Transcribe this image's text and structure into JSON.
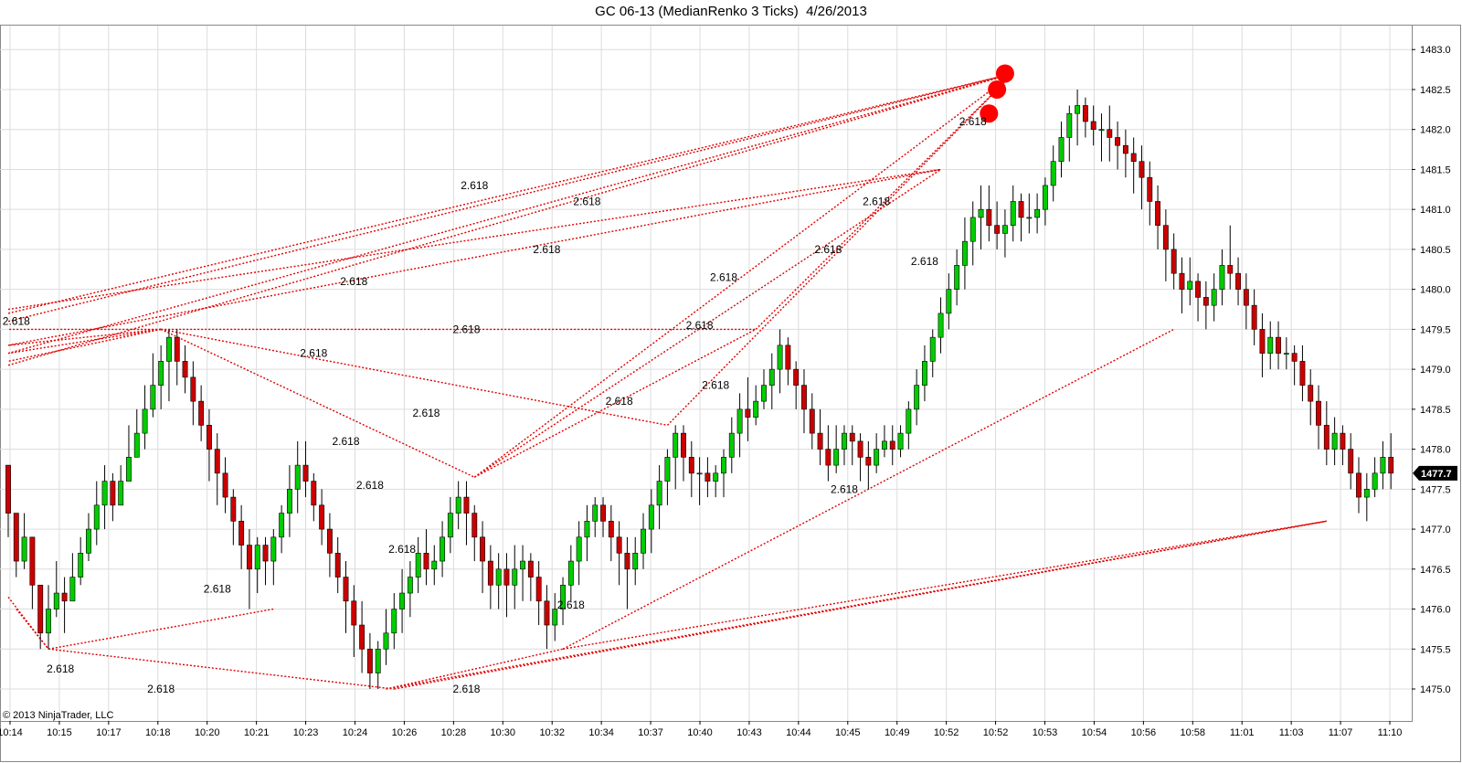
{
  "title": "GC 06-13 (MedianRenko 3 Ticks)  4/26/2013",
  "copyright": "© 2013 NinjaTrader, LLC",
  "colors": {
    "up_candle": "#00cc00",
    "down_candle": "#cc0000",
    "wick": "#000000",
    "fib_line": "#e00000",
    "marker": "#ff0000",
    "grid": "#dcdcdc",
    "price_tag": "#000000"
  },
  "chart_data": {
    "type": "candlestick",
    "ylim": [
      1474.6,
      1483.3
    ],
    "y_ticks": [
      "1475.0",
      "1475.5",
      "1476.0",
      "1476.5",
      "1477.0",
      "1477.5",
      "1478.0",
      "1478.5",
      "1479.0",
      "1479.5",
      "1480.0",
      "1480.5",
      "1481.0",
      "1481.5",
      "1482.0",
      "1482.5",
      "1483.0"
    ],
    "x_ticks": [
      "10:14",
      "10:15",
      "10:17",
      "10:18",
      "10:20",
      "10:21",
      "10:23",
      "10:24",
      "10:26",
      "10:28",
      "10:30",
      "10:32",
      "10:34",
      "10:37",
      "10:40",
      "10:43",
      "10:44",
      "10:45",
      "10:49",
      "10:52",
      "10:52",
      "10:53",
      "10:54",
      "10:56",
      "10:58",
      "11:01",
      "11:03",
      "11:07",
      "11:10"
    ],
    "last_price": "1477.7",
    "fib_label": "2.618",
    "candles": [
      [
        1477.8,
        1477.2,
        1477.8,
        1476.9
      ],
      [
        1477.2,
        1476.6,
        1477.2,
        1476.4
      ],
      [
        1476.6,
        1476.9,
        1477.2,
        1476.5
      ],
      [
        1476.9,
        1476.3,
        1476.9,
        1476.0
      ],
      [
        1476.3,
        1475.7,
        1476.3,
        1475.5
      ],
      [
        1475.7,
        1476.0,
        1476.3,
        1475.5
      ],
      [
        1476.0,
        1476.2,
        1476.6,
        1475.9
      ],
      [
        1476.2,
        1476.1,
        1476.4,
        1475.7
      ],
      [
        1476.1,
        1476.4,
        1476.7,
        1476.1
      ],
      [
        1476.4,
        1476.7,
        1476.9,
        1476.3
      ],
      [
        1476.7,
        1477.0,
        1477.2,
        1476.6
      ],
      [
        1477.0,
        1477.3,
        1477.6,
        1476.8
      ],
      [
        1477.3,
        1477.6,
        1477.8,
        1477.0
      ],
      [
        1477.6,
        1477.3,
        1477.7,
        1477.1
      ],
      [
        1477.3,
        1477.6,
        1477.8,
        1477.3
      ],
      [
        1477.6,
        1477.9,
        1478.3,
        1477.6
      ],
      [
        1477.9,
        1478.2,
        1478.5,
        1477.9
      ],
      [
        1478.2,
        1478.5,
        1478.8,
        1478.0
      ],
      [
        1478.5,
        1478.8,
        1479.2,
        1478.4
      ],
      [
        1478.8,
        1479.1,
        1479.3,
        1478.5
      ],
      [
        1479.1,
        1479.4,
        1479.5,
        1478.6
      ],
      [
        1479.4,
        1479.1,
        1479.5,
        1478.8
      ],
      [
        1479.1,
        1478.9,
        1479.3,
        1478.7
      ],
      [
        1478.9,
        1478.6,
        1479.1,
        1478.3
      ],
      [
        1478.6,
        1478.3,
        1478.8,
        1478.1
      ],
      [
        1478.3,
        1478.0,
        1478.5,
        1477.6
      ],
      [
        1478.0,
        1477.7,
        1478.2,
        1477.3
      ],
      [
        1477.7,
        1477.4,
        1477.9,
        1477.2
      ],
      [
        1477.4,
        1477.1,
        1477.5,
        1476.8
      ],
      [
        1477.1,
        1476.8,
        1477.3,
        1476.5
      ],
      [
        1476.8,
        1476.5,
        1477.0,
        1476.0
      ],
      [
        1476.5,
        1476.8,
        1476.9,
        1476.2
      ],
      [
        1476.8,
        1476.6,
        1476.9,
        1476.3
      ],
      [
        1476.6,
        1476.9,
        1477.0,
        1476.3
      ],
      [
        1476.9,
        1477.2,
        1477.3,
        1476.7
      ],
      [
        1477.2,
        1477.5,
        1477.8,
        1476.9
      ],
      [
        1477.5,
        1477.8,
        1478.1,
        1477.2
      ],
      [
        1477.8,
        1477.6,
        1478.1,
        1477.4
      ],
      [
        1477.6,
        1477.3,
        1477.7,
        1477.1
      ],
      [
        1477.3,
        1477.0,
        1477.5,
        1476.8
      ],
      [
        1477.0,
        1476.7,
        1477.2,
        1476.4
      ],
      [
        1476.7,
        1476.4,
        1476.9,
        1476.2
      ],
      [
        1476.4,
        1476.1,
        1476.6,
        1475.7
      ],
      [
        1476.1,
        1475.8,
        1476.3,
        1475.4
      ],
      [
        1475.8,
        1475.5,
        1476.1,
        1475.2
      ],
      [
        1475.5,
        1475.2,
        1475.7,
        1475.0
      ],
      [
        1475.2,
        1475.5,
        1475.6,
        1475.0
      ],
      [
        1475.5,
        1475.7,
        1476.0,
        1475.3
      ],
      [
        1475.7,
        1476.0,
        1476.2,
        1475.5
      ],
      [
        1476.0,
        1476.2,
        1476.5,
        1475.7
      ],
      [
        1476.2,
        1476.4,
        1476.6,
        1475.9
      ],
      [
        1476.4,
        1476.7,
        1476.9,
        1476.2
      ],
      [
        1476.7,
        1476.5,
        1477.0,
        1476.3
      ],
      [
        1476.5,
        1476.6,
        1476.8,
        1476.3
      ],
      [
        1476.6,
        1476.9,
        1477.1,
        1476.4
      ],
      [
        1476.9,
        1477.2,
        1477.4,
        1476.7
      ],
      [
        1477.2,
        1477.4,
        1477.6,
        1477.0
      ],
      [
        1477.4,
        1477.2,
        1477.6,
        1476.8
      ],
      [
        1477.2,
        1476.9,
        1477.3,
        1476.6
      ],
      [
        1476.9,
        1476.6,
        1477.1,
        1476.2
      ],
      [
        1476.6,
        1476.3,
        1476.8,
        1476.0
      ],
      [
        1476.3,
        1476.5,
        1476.7,
        1476.0
      ],
      [
        1476.5,
        1476.3,
        1476.7,
        1475.9
      ],
      [
        1476.3,
        1476.5,
        1476.8,
        1476.0
      ],
      [
        1476.5,
        1476.6,
        1476.8,
        1476.1
      ],
      [
        1476.6,
        1476.4,
        1476.7,
        1476.1
      ],
      [
        1476.4,
        1476.1,
        1476.6,
        1475.8
      ],
      [
        1476.1,
        1475.8,
        1476.3,
        1475.5
      ],
      [
        1475.8,
        1476.0,
        1476.2,
        1475.6
      ],
      [
        1476.0,
        1476.3,
        1476.4,
        1475.8
      ],
      [
        1476.3,
        1476.6,
        1476.8,
        1476.1
      ],
      [
        1476.6,
        1476.9,
        1477.1,
        1476.3
      ],
      [
        1476.9,
        1477.1,
        1477.3,
        1476.6
      ],
      [
        1477.1,
        1477.3,
        1477.4,
        1476.9
      ],
      [
        1477.3,
        1477.1,
        1477.4,
        1476.9
      ],
      [
        1477.1,
        1476.9,
        1477.3,
        1476.6
      ],
      [
        1476.9,
        1476.7,
        1477.1,
        1476.3
      ],
      [
        1476.7,
        1476.5,
        1476.9,
        1476.0
      ],
      [
        1476.5,
        1476.7,
        1476.9,
        1476.3
      ],
      [
        1476.7,
        1477.0,
        1477.2,
        1476.5
      ],
      [
        1477.0,
        1477.3,
        1477.5,
        1476.7
      ],
      [
        1477.3,
        1477.6,
        1477.8,
        1477.0
      ],
      [
        1477.6,
        1477.9,
        1478.0,
        1477.3
      ],
      [
        1477.9,
        1478.2,
        1478.3,
        1477.5
      ],
      [
        1478.2,
        1477.9,
        1478.3,
        1477.6
      ],
      [
        1477.9,
        1477.7,
        1478.1,
        1477.4
      ],
      [
        1477.7,
        1477.7,
        1477.9,
        1477.3
      ],
      [
        1477.7,
        1477.6,
        1477.9,
        1477.4
      ],
      [
        1477.6,
        1477.7,
        1477.8,
        1477.4
      ],
      [
        1477.7,
        1477.9,
        1478.0,
        1477.4
      ],
      [
        1477.9,
        1478.2,
        1478.4,
        1477.7
      ],
      [
        1478.2,
        1478.5,
        1478.7,
        1477.9
      ],
      [
        1478.5,
        1478.4,
        1478.9,
        1478.1
      ],
      [
        1478.4,
        1478.6,
        1478.8,
        1478.3
      ],
      [
        1478.6,
        1478.8,
        1479.0,
        1478.5
      ],
      [
        1478.8,
        1479.0,
        1479.2,
        1478.5
      ],
      [
        1479.0,
        1479.3,
        1479.5,
        1478.7
      ],
      [
        1479.3,
        1479.0,
        1479.4,
        1478.8
      ],
      [
        1479.0,
        1478.8,
        1479.1,
        1478.5
      ],
      [
        1478.8,
        1478.5,
        1479.0,
        1478.2
      ],
      [
        1478.5,
        1478.2,
        1478.7,
        1478.0
      ],
      [
        1478.2,
        1478.0,
        1478.5,
        1477.8
      ],
      [
        1478.0,
        1477.8,
        1478.3,
        1477.6
      ],
      [
        1477.8,
        1478.0,
        1478.3,
        1477.7
      ],
      [
        1478.0,
        1478.2,
        1478.3,
        1477.8
      ],
      [
        1478.2,
        1478.1,
        1478.3,
        1477.8
      ],
      [
        1478.1,
        1477.9,
        1478.2,
        1477.6
      ],
      [
        1477.9,
        1477.8,
        1478.1,
        1477.5
      ],
      [
        1477.8,
        1478.0,
        1478.2,
        1477.7
      ],
      [
        1478.0,
        1478.1,
        1478.3,
        1477.9
      ],
      [
        1478.1,
        1478.0,
        1478.3,
        1477.8
      ],
      [
        1478.0,
        1478.2,
        1478.3,
        1477.9
      ],
      [
        1478.2,
        1478.5,
        1478.6,
        1478.0
      ],
      [
        1478.5,
        1478.8,
        1479.0,
        1478.3
      ],
      [
        1478.8,
        1479.1,
        1479.3,
        1478.6
      ],
      [
        1479.1,
        1479.4,
        1479.5,
        1478.9
      ],
      [
        1479.4,
        1479.7,
        1479.9,
        1479.2
      ],
      [
        1479.7,
        1480.0,
        1480.2,
        1479.5
      ],
      [
        1480.0,
        1480.3,
        1480.5,
        1479.8
      ],
      [
        1480.3,
        1480.6,
        1480.9,
        1480.0
      ],
      [
        1480.6,
        1480.9,
        1481.1,
        1480.3
      ],
      [
        1480.9,
        1481.0,
        1481.3,
        1480.5
      ],
      [
        1481.0,
        1480.8,
        1481.3,
        1480.6
      ],
      [
        1480.8,
        1480.7,
        1481.1,
        1480.5
      ],
      [
        1480.7,
        1480.8,
        1481.0,
        1480.4
      ],
      [
        1480.8,
        1481.1,
        1481.3,
        1480.6
      ],
      [
        1481.1,
        1480.9,
        1481.2,
        1480.6
      ],
      [
        1480.9,
        1480.9,
        1481.2,
        1480.7
      ],
      [
        1480.9,
        1481.0,
        1481.2,
        1480.7
      ],
      [
        1481.0,
        1481.3,
        1481.4,
        1480.8
      ],
      [
        1481.3,
        1481.6,
        1481.8,
        1481.1
      ],
      [
        1481.6,
        1481.9,
        1482.1,
        1481.4
      ],
      [
        1481.9,
        1482.2,
        1482.3,
        1481.6
      ],
      [
        1482.2,
        1482.3,
        1482.5,
        1481.8
      ],
      [
        1482.3,
        1482.1,
        1482.4,
        1481.9
      ],
      [
        1482.1,
        1482.0,
        1482.3,
        1481.8
      ],
      [
        1482.0,
        1482.0,
        1482.2,
        1481.6
      ],
      [
        1482.0,
        1481.9,
        1482.3,
        1481.6
      ],
      [
        1481.9,
        1481.8,
        1482.1,
        1481.5
      ],
      [
        1481.8,
        1481.7,
        1482.0,
        1481.4
      ],
      [
        1481.7,
        1481.6,
        1481.9,
        1481.2
      ],
      [
        1481.6,
        1481.4,
        1481.8,
        1481.0
      ],
      [
        1481.4,
        1481.1,
        1481.6,
        1480.8
      ],
      [
        1481.1,
        1480.8,
        1481.3,
        1480.5
      ],
      [
        1480.8,
        1480.5,
        1481.0,
        1480.1
      ],
      [
        1480.5,
        1480.2,
        1480.7,
        1480.0
      ],
      [
        1480.2,
        1480.0,
        1480.4,
        1479.7
      ],
      [
        1480.0,
        1480.1,
        1480.4,
        1479.8
      ],
      [
        1480.1,
        1479.9,
        1480.2,
        1479.6
      ],
      [
        1479.9,
        1479.8,
        1480.1,
        1479.5
      ],
      [
        1479.8,
        1480.0,
        1480.2,
        1479.6
      ],
      [
        1480.0,
        1480.3,
        1480.5,
        1479.8
      ],
      [
        1480.3,
        1480.2,
        1480.8,
        1480.0
      ],
      [
        1480.2,
        1480.0,
        1480.4,
        1479.8
      ],
      [
        1480.0,
        1479.8,
        1480.2,
        1479.5
      ],
      [
        1479.8,
        1479.5,
        1480.0,
        1479.3
      ],
      [
        1479.5,
        1479.2,
        1479.7,
        1478.9
      ],
      [
        1479.2,
        1479.4,
        1479.6,
        1479.0
      ],
      [
        1479.4,
        1479.2,
        1479.6,
        1479.0
      ],
      [
        1479.2,
        1479.2,
        1479.4,
        1479.0
      ],
      [
        1479.2,
        1479.1,
        1479.3,
        1478.8
      ],
      [
        1479.1,
        1478.8,
        1479.3,
        1478.6
      ],
      [
        1478.8,
        1478.6,
        1479.0,
        1478.3
      ],
      [
        1478.6,
        1478.3,
        1478.8,
        1478.0
      ],
      [
        1478.3,
        1478.0,
        1478.6,
        1477.8
      ],
      [
        1478.0,
        1478.2,
        1478.4,
        1477.8
      ],
      [
        1478.2,
        1478.0,
        1478.3,
        1477.8
      ],
      [
        1478.0,
        1477.7,
        1478.2,
        1477.5
      ],
      [
        1477.7,
        1477.4,
        1477.9,
        1477.2
      ],
      [
        1477.4,
        1477.5,
        1477.7,
        1477.1
      ],
      [
        1477.5,
        1477.7,
        1477.9,
        1477.4
      ],
      [
        1477.7,
        1477.9,
        1478.1,
        1477.5
      ],
      [
        1477.9,
        1477.7,
        1478.2,
        1477.5
      ]
    ],
    "fib_lines": [
      [
        1,
        1476.0,
        5,
        1475.5
      ],
      [
        5,
        1475.5,
        33,
        1476.0
      ],
      [
        5,
        1475.5,
        48,
        1475.0
      ],
      [
        19,
        1479.5,
        0,
        1479.5
      ],
      [
        19,
        1479.5,
        0,
        1479.1
      ],
      [
        19,
        1479.5,
        0,
        1479.2
      ],
      [
        19,
        1479.5,
        0,
        1479.3
      ],
      [
        19,
        1479.5,
        58,
        1477.65
      ],
      [
        19,
        1479.5,
        82,
        1478.3
      ],
      [
        19,
        1479.5,
        93,
        1479.5
      ],
      [
        0,
        1479.6,
        125,
        1482.7
      ],
      [
        0,
        1479.2,
        125,
        1482.7
      ],
      [
        0,
        1479.05,
        125,
        1482.7
      ],
      [
        0,
        1479.7,
        125,
        1482.7
      ],
      [
        0,
        1479.75,
        116,
        1481.5
      ],
      [
        0,
        1479.3,
        116,
        1481.5
      ],
      [
        58,
        1477.65,
        116,
        1481.5
      ],
      [
        58,
        1477.65,
        125,
        1482.7
      ],
      [
        58,
        1477.65,
        93,
        1479.5
      ],
      [
        82,
        1478.3,
        125,
        1482.7
      ],
      [
        93,
        1479.5,
        125,
        1482.7
      ],
      [
        47,
        1475.0,
        69,
        1475.5
      ],
      [
        69,
        1475.5,
        145,
        1479.5
      ],
      [
        47,
        1475.0,
        164,
        1477.1
      ],
      [
        48,
        1475.0,
        164,
        1477.1
      ],
      [
        69,
        1475.5,
        164,
        1477.1
      ],
      [
        0,
        1476.15,
        5,
        1475.5
      ]
    ],
    "fib_labels": [
      [
        6.5,
        1475.25
      ],
      [
        19,
        1475.0
      ],
      [
        26,
        1476.25
      ],
      [
        57,
        1475.0
      ],
      [
        70,
        1476.05
      ],
      [
        49,
        1476.75
      ],
      [
        45,
        1477.55
      ],
      [
        42,
        1478.1
      ],
      [
        52,
        1478.45
      ],
      [
        76,
        1478.6
      ],
      [
        88,
        1478.8
      ],
      [
        104,
        1477.5
      ],
      [
        57,
        1479.5
      ],
      [
        38,
        1479.2
      ],
      [
        86,
        1479.55
      ],
      [
        89,
        1480.15
      ],
      [
        102,
        1480.5
      ],
      [
        108,
        1481.1
      ],
      [
        43,
        1480.1
      ],
      [
        58,
        1481.3
      ],
      [
        67,
        1480.5
      ],
      [
        72,
        1481.1
      ],
      [
        114,
        1480.35
      ],
      [
        1,
        1479.6
      ],
      [
        120,
        1482.1
      ]
    ],
    "markers": [
      [
        122,
        1482.2
      ],
      [
        123,
        1482.5
      ],
      [
        124,
        1482.7
      ]
    ]
  }
}
